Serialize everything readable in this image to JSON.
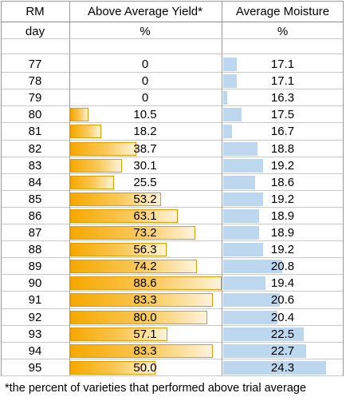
{
  "headers": {
    "rm": "RM",
    "yield": "Above Average Yield*",
    "moisture": "Average Moisture"
  },
  "units": {
    "rm": "day",
    "yield": "%",
    "moisture": "%"
  },
  "rows": [
    {
      "rm": "77",
      "yield": "0",
      "moisture": "17.1"
    },
    {
      "rm": "78",
      "yield": "0",
      "moisture": "17.1"
    },
    {
      "rm": "79",
      "yield": "0",
      "moisture": "16.3"
    },
    {
      "rm": "80",
      "yield": "10.5",
      "moisture": "17.5"
    },
    {
      "rm": "81",
      "yield": "18.2",
      "moisture": "16.7"
    },
    {
      "rm": "82",
      "yield": "38.7",
      "moisture": "18.8"
    },
    {
      "rm": "83",
      "yield": "30.1",
      "moisture": "19.2"
    },
    {
      "rm": "84",
      "yield": "25.5",
      "moisture": "18.6"
    },
    {
      "rm": "85",
      "yield": "53.2",
      "moisture": "19.2"
    },
    {
      "rm": "86",
      "yield": "63.1",
      "moisture": "18.9"
    },
    {
      "rm": "87",
      "yield": "73.2",
      "moisture": "18.9"
    },
    {
      "rm": "88",
      "yield": "56.3",
      "moisture": "19.2"
    },
    {
      "rm": "89",
      "yield": "74.2",
      "moisture": "20.8"
    },
    {
      "rm": "90",
      "yield": "88.6",
      "moisture": "19.4"
    },
    {
      "rm": "91",
      "yield": "83.3",
      "moisture": "20.6"
    },
    {
      "rm": "92",
      "yield": "80.0",
      "moisture": "20.4"
    },
    {
      "rm": "93",
      "yield": "57.1",
      "moisture": "22.5"
    },
    {
      "rm": "94",
      "yield": "83.3",
      "moisture": "22.7"
    },
    {
      "rm": "95",
      "yield": "50.0",
      "moisture": "24.3"
    }
  ],
  "footnote": "*the percent of varieties that performed above trial average",
  "colors": {
    "yield_bar": "#f6a800",
    "yield_bar_border": "#e39a00",
    "moisture_bar": "#bdd7ee"
  }
}
